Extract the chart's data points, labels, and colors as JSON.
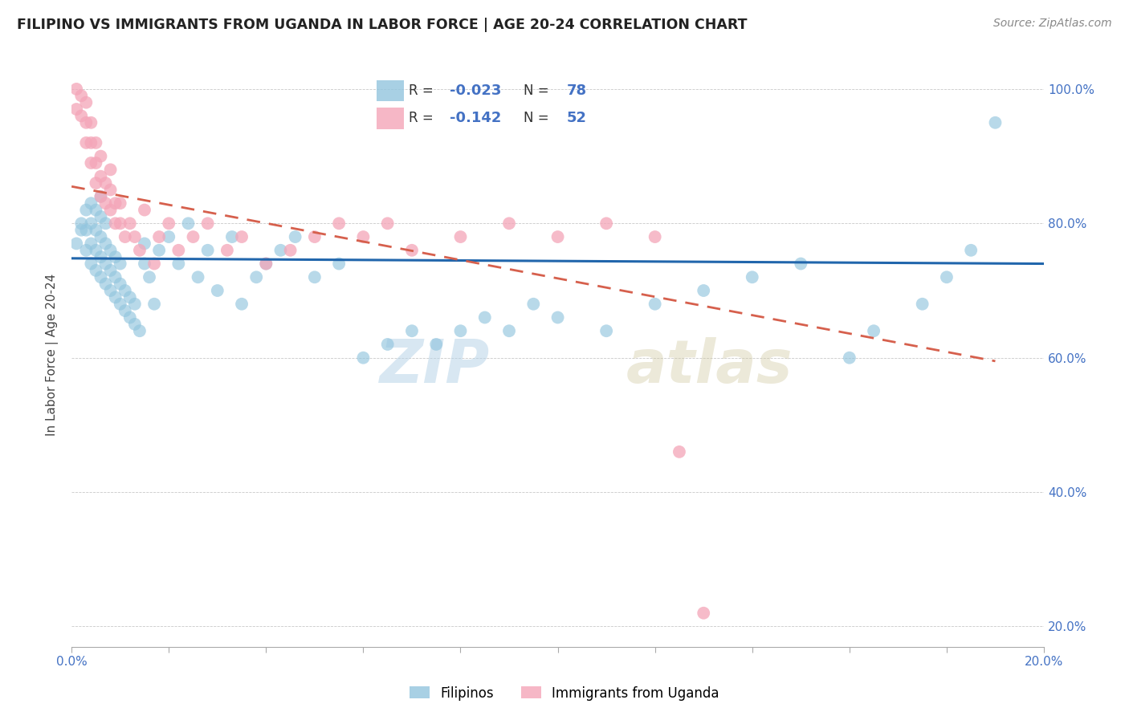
{
  "title": "FILIPINO VS IMMIGRANTS FROM UGANDA IN LABOR FORCE | AGE 20-24 CORRELATION CHART",
  "source": "Source: ZipAtlas.com",
  "ylabel": "In Labor Force | Age 20-24",
  "xlim": [
    0.0,
    0.2
  ],
  "ylim": [
    0.17,
    1.04
  ],
  "xticks": [
    0.0,
    0.02,
    0.04,
    0.06,
    0.08,
    0.1,
    0.12,
    0.14,
    0.16,
    0.18,
    0.2
  ],
  "yticks": [
    0.2,
    0.4,
    0.6,
    0.8,
    1.0
  ],
  "blue_R": -0.023,
  "blue_N": 78,
  "pink_R": -0.142,
  "pink_N": 52,
  "blue_color": "#92c5de",
  "pink_color": "#f4a5b8",
  "blue_line_color": "#2166ac",
  "pink_line_color": "#d6604d",
  "legend_label_blue": "Filipinos",
  "legend_label_pink": "Immigrants from Uganda",
  "watermark": "ZIPatlas",
  "blue_x": [
    0.001,
    0.002,
    0.002,
    0.003,
    0.003,
    0.003,
    0.004,
    0.004,
    0.004,
    0.004,
    0.005,
    0.005,
    0.005,
    0.005,
    0.006,
    0.006,
    0.006,
    0.006,
    0.006,
    0.007,
    0.007,
    0.007,
    0.007,
    0.008,
    0.008,
    0.008,
    0.009,
    0.009,
    0.009,
    0.01,
    0.01,
    0.01,
    0.011,
    0.011,
    0.012,
    0.012,
    0.013,
    0.013,
    0.014,
    0.015,
    0.015,
    0.016,
    0.017,
    0.018,
    0.02,
    0.022,
    0.024,
    0.026,
    0.028,
    0.03,
    0.033,
    0.035,
    0.038,
    0.04,
    0.043,
    0.046,
    0.05,
    0.055,
    0.06,
    0.065,
    0.07,
    0.075,
    0.08,
    0.085,
    0.09,
    0.095,
    0.1,
    0.11,
    0.12,
    0.13,
    0.14,
    0.15,
    0.16,
    0.165,
    0.175,
    0.18,
    0.185,
    0.19
  ],
  "blue_y": [
    0.77,
    0.8,
    0.79,
    0.76,
    0.79,
    0.82,
    0.74,
    0.77,
    0.8,
    0.83,
    0.73,
    0.76,
    0.79,
    0.82,
    0.72,
    0.75,
    0.78,
    0.81,
    0.84,
    0.71,
    0.74,
    0.77,
    0.8,
    0.7,
    0.73,
    0.76,
    0.69,
    0.72,
    0.75,
    0.68,
    0.71,
    0.74,
    0.67,
    0.7,
    0.66,
    0.69,
    0.65,
    0.68,
    0.64,
    0.74,
    0.77,
    0.72,
    0.68,
    0.76,
    0.78,
    0.74,
    0.8,
    0.72,
    0.76,
    0.7,
    0.78,
    0.68,
    0.72,
    0.74,
    0.76,
    0.78,
    0.72,
    0.74,
    0.6,
    0.62,
    0.64,
    0.62,
    0.64,
    0.66,
    0.64,
    0.68,
    0.66,
    0.64,
    0.68,
    0.7,
    0.72,
    0.74,
    0.6,
    0.64,
    0.68,
    0.72,
    0.76,
    0.95
  ],
  "pink_x": [
    0.001,
    0.001,
    0.002,
    0.002,
    0.003,
    0.003,
    0.003,
    0.004,
    0.004,
    0.004,
    0.005,
    0.005,
    0.005,
    0.006,
    0.006,
    0.006,
    0.007,
    0.007,
    0.008,
    0.008,
    0.008,
    0.009,
    0.009,
    0.01,
    0.01,
    0.011,
    0.012,
    0.013,
    0.014,
    0.015,
    0.017,
    0.018,
    0.02,
    0.022,
    0.025,
    0.028,
    0.032,
    0.035,
    0.04,
    0.045,
    0.05,
    0.055,
    0.06,
    0.065,
    0.07,
    0.08,
    0.09,
    0.1,
    0.11,
    0.12,
    0.125,
    0.13
  ],
  "pink_y": [
    1.0,
    0.97,
    0.96,
    0.99,
    0.92,
    0.95,
    0.98,
    0.89,
    0.92,
    0.95,
    0.86,
    0.89,
    0.92,
    0.84,
    0.87,
    0.9,
    0.83,
    0.86,
    0.82,
    0.85,
    0.88,
    0.8,
    0.83,
    0.8,
    0.83,
    0.78,
    0.8,
    0.78,
    0.76,
    0.82,
    0.74,
    0.78,
    0.8,
    0.76,
    0.78,
    0.8,
    0.76,
    0.78,
    0.74,
    0.76,
    0.78,
    0.8,
    0.78,
    0.8,
    0.76,
    0.78,
    0.8,
    0.78,
    0.8,
    0.78,
    0.46,
    0.22
  ],
  "blue_line_x0": 0.0,
  "blue_line_x1": 0.2,
  "blue_line_y0": 0.748,
  "blue_line_y1": 0.74,
  "pink_line_x0": 0.0,
  "pink_line_x1": 0.19,
  "pink_line_y0": 0.855,
  "pink_line_y1": 0.595
}
